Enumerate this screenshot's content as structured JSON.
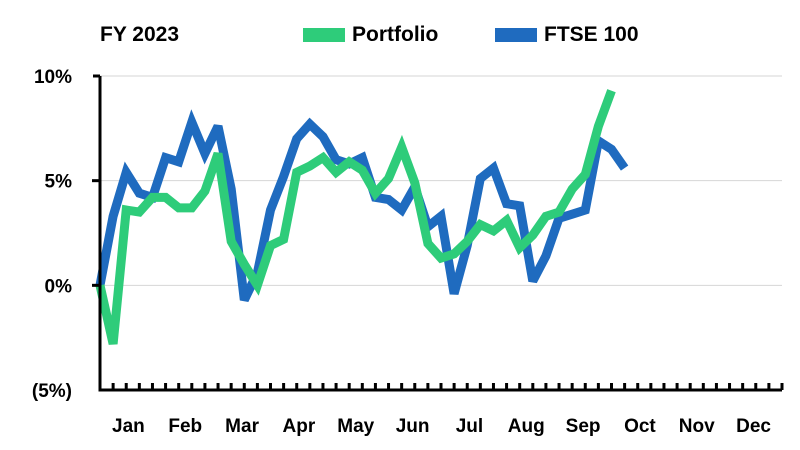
{
  "chart_data": {
    "type": "line",
    "title": "FY 2023",
    "xlabel": "",
    "ylabel": "",
    "ylim": [
      -5,
      10
    ],
    "yticks": [
      {
        "value": 10,
        "label": "10%"
      },
      {
        "value": 5,
        "label": "5%"
      },
      {
        "value": 0,
        "label": "0%"
      },
      {
        "value": -5,
        "label": "(5%)"
      }
    ],
    "months": [
      "Jan",
      "Feb",
      "Mar",
      "Apr",
      "May",
      "Jun",
      "Jul",
      "Aug",
      "Sep",
      "Oct",
      "Nov",
      "Dec"
    ],
    "x_unit": "week",
    "grid": "horizontal",
    "legend_position": "top",
    "series": [
      {
        "name": "Portfolio",
        "color": "#2ecc7a",
        "x": [
          0,
          1,
          2,
          3,
          4,
          5,
          6,
          7,
          8,
          9,
          10,
          11,
          12,
          13,
          14,
          15,
          16,
          17,
          18,
          19,
          20,
          21,
          22,
          23,
          24,
          25,
          26,
          27,
          28,
          29,
          30,
          31,
          32,
          33,
          34,
          35,
          36,
          37,
          38,
          39,
          40
        ],
        "values": [
          0,
          -2.8,
          3.6,
          3.5,
          4.2,
          4.2,
          3.7,
          3.7,
          4.5,
          6.3,
          2.1,
          1.0,
          0.0,
          1.9,
          2.2,
          5.4,
          5.7,
          6.1,
          5.4,
          5.9,
          5.5,
          4.4,
          5.1,
          6.6,
          4.9,
          2.0,
          1.3,
          1.5,
          2.1,
          2.9,
          2.6,
          3.1,
          1.8,
          2.4,
          3.3,
          3.5,
          4.6,
          5.3,
          7.6,
          9.3,
          null
        ]
      },
      {
        "name": "FTSE 100",
        "color": "#1f6bbf",
        "x": [
          0,
          1,
          2,
          3,
          4,
          5,
          6,
          7,
          8,
          9,
          10,
          11,
          12,
          13,
          14,
          15,
          16,
          17,
          18,
          19,
          20,
          21,
          22,
          23,
          24,
          25,
          26,
          27,
          28,
          29,
          30,
          31,
          32,
          33,
          34,
          35,
          36,
          37,
          38,
          39,
          40
        ],
        "values": [
          0,
          3.3,
          5.4,
          4.4,
          4.2,
          6.1,
          5.9,
          7.8,
          6.3,
          7.6,
          4.6,
          -0.7,
          0.6,
          3.6,
          5.2,
          7.0,
          7.7,
          7.1,
          6.0,
          5.8,
          6.1,
          4.2,
          4.1,
          3.6,
          4.7,
          2.8,
          3.3,
          -0.4,
          1.9,
          5.1,
          5.6,
          3.9,
          3.8,
          0.2,
          1.4,
          3.2,
          3.4,
          3.6,
          6.9,
          6.5,
          5.6
        ]
      }
    ]
  }
}
